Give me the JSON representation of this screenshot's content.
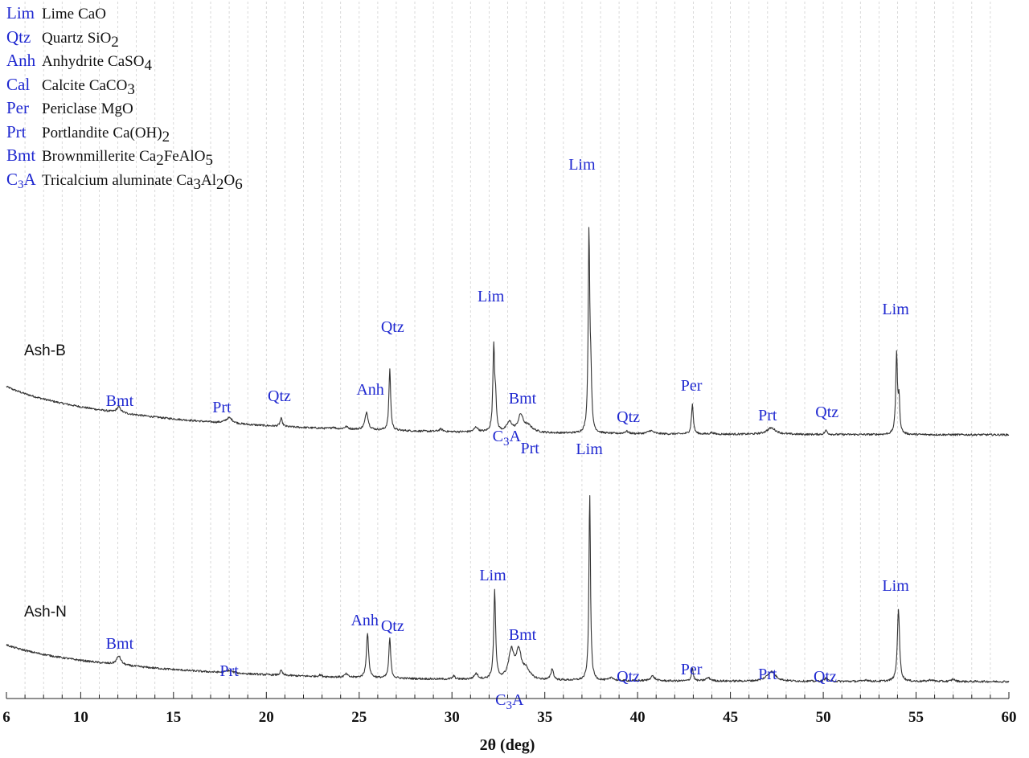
{
  "chart_data": {
    "type": "line",
    "xlabel": "2θ (deg)",
    "xlim": [
      6,
      60
    ],
    "x_ticks": [
      "6",
      "10",
      "15",
      "20",
      "25",
      "30",
      "35",
      "40",
      "45",
      "50",
      "55",
      "60"
    ],
    "grid": "vertical dashed, every 1 deg",
    "line_color": "#333333",
    "label_color": "#1f28d0",
    "legend_position": "top-left",
    "legend": [
      {
        "abbr": "Lim",
        "name": "Lime",
        "formula": [
          "Ca",
          "O"
        ],
        "sub": [
          "",
          ""
        ]
      },
      {
        "abbr": "Qtz",
        "name": "Quartz",
        "formula": [
          "Si",
          "O"
        ],
        "sub": [
          "",
          "2"
        ]
      },
      {
        "abbr": "Anh",
        "name": "Anhydrite",
        "formula": [
          "Ca",
          "S",
          "O"
        ],
        "sub": [
          "",
          "",
          "4"
        ]
      },
      {
        "abbr": "Cal",
        "name": "Calcite",
        "formula": [
          "Ca",
          "C",
          "O"
        ],
        "sub": [
          "",
          "",
          "3"
        ]
      },
      {
        "abbr": "Per",
        "name": "Periclase",
        "formula": [
          "Mg",
          "O"
        ],
        "sub": [
          "",
          ""
        ]
      },
      {
        "abbr": "Prt",
        "name": "Portlandite",
        "formula": [
          "Ca(OH)"
        ],
        "sub": [
          "2"
        ]
      },
      {
        "abbr": "Bmt",
        "name": "Brownmillerite",
        "formula": [
          "Ca",
          "FeAlO"
        ],
        "sub": [
          "2",
          "5"
        ]
      },
      {
        "abbr": "C3A",
        "name": "Tricalcium aluminate",
        "formula": [
          "Ca",
          "Al",
          "O"
        ],
        "sub": [
          "3",
          "2",
          "6"
        ]
      }
    ],
    "series": [
      {
        "name": "Ash-B",
        "baseline": {
          "start": 0.58,
          "end": 0.04,
          "decay": 2.3
        },
        "noise": 0.012,
        "peaks": [
          {
            "x": 12.05,
            "h": 0.07,
            "w": 0.14
          },
          {
            "x": 18.0,
            "h": 0.07,
            "w": 0.22
          },
          {
            "x": 20.8,
            "h": 0.1,
            "w": 0.07
          },
          {
            "x": 23.6,
            "h": 0.02,
            "w": 0.1
          },
          {
            "x": 24.3,
            "h": 0.03,
            "w": 0.12
          },
          {
            "x": 25.4,
            "h": 0.22,
            "w": 0.1
          },
          {
            "x": 26.65,
            "h": 0.77,
            "w": 0.055
          },
          {
            "x": 29.4,
            "h": 0.03,
            "w": 0.12
          },
          {
            "x": 31.3,
            "h": 0.06,
            "w": 0.12
          },
          {
            "x": 32.25,
            "h": 1.06,
            "w": 0.055
          },
          {
            "x": 32.35,
            "h": 0.35,
            "w": 0.05
          },
          {
            "x": 33.1,
            "h": 0.12,
            "w": 0.18
          },
          {
            "x": 33.7,
            "h": 0.2,
            "w": 0.16
          },
          {
            "x": 34.1,
            "h": 0.08,
            "w": 0.3
          },
          {
            "x": 37.38,
            "h": 2.48,
            "w": 0.05
          },
          {
            "x": 37.48,
            "h": 0.6,
            "w": 0.05
          },
          {
            "x": 39.4,
            "h": 0.03,
            "w": 0.12
          },
          {
            "x": 40.7,
            "h": 0.04,
            "w": 0.18
          },
          {
            "x": 42.95,
            "h": 0.37,
            "w": 0.06
          },
          {
            "x": 44.0,
            "h": 0.02,
            "w": 0.1
          },
          {
            "x": 47.2,
            "h": 0.08,
            "w": 0.3
          },
          {
            "x": 50.15,
            "h": 0.05,
            "w": 0.08
          },
          {
            "x": 53.95,
            "h": 1.0,
            "w": 0.055
          },
          {
            "x": 54.08,
            "h": 0.4,
            "w": 0.05
          }
        ],
        "peak_labels": [
          {
            "text": "Bmt",
            "x": 12.1,
            "y": 0.4
          },
          {
            "text": "Prt",
            "x": 17.6,
            "y": 0.32
          },
          {
            "text": "Qtz",
            "x": 20.7,
            "y": 0.46
          },
          {
            "text": "Anh",
            "x": 25.6,
            "y": 0.54
          },
          {
            "text": "Qtz",
            "x": 26.8,
            "y": 1.32
          },
          {
            "text": "Lim",
            "x": 32.1,
            "y": 1.7
          },
          {
            "text": "Bmt",
            "x": 33.8,
            "y": 0.43
          },
          {
            "text": "C3A",
            "x": 32.95,
            "y": -0.04
          },
          {
            "text": "Prt",
            "x": 34.2,
            "y": -0.19
          },
          {
            "text": "Lim",
            "x": 37.0,
            "y": 3.34
          },
          {
            "text": "Qtz",
            "x": 39.5,
            "y": 0.2
          },
          {
            "text": "Per",
            "x": 42.9,
            "y": 0.59
          },
          {
            "text": "Prt",
            "x": 47.0,
            "y": 0.22
          },
          {
            "text": "Qtz",
            "x": 50.2,
            "y": 0.26
          },
          {
            "text": "Lim",
            "x": 53.9,
            "y": 1.54
          }
        ]
      },
      {
        "name": "Ash-N",
        "baseline": {
          "start": 0.44,
          "end": 0.03,
          "decay": 2.3
        },
        "noise": 0.012,
        "peaks": [
          {
            "x": 12.05,
            "h": 0.11,
            "w": 0.14
          },
          {
            "x": 18.0,
            "h": 0.03,
            "w": 0.22
          },
          {
            "x": 20.8,
            "h": 0.06,
            "w": 0.07
          },
          {
            "x": 22.9,
            "h": 0.02,
            "w": 0.1
          },
          {
            "x": 24.3,
            "h": 0.04,
            "w": 0.1
          },
          {
            "x": 25.45,
            "h": 0.56,
            "w": 0.07
          },
          {
            "x": 26.65,
            "h": 0.5,
            "w": 0.06
          },
          {
            "x": 30.1,
            "h": 0.04,
            "w": 0.08
          },
          {
            "x": 31.3,
            "h": 0.07,
            "w": 0.12
          },
          {
            "x": 32.3,
            "h": 1.1,
            "w": 0.06
          },
          {
            "x": 33.2,
            "h": 0.35,
            "w": 0.18
          },
          {
            "x": 33.6,
            "h": 0.33,
            "w": 0.16
          },
          {
            "x": 34.0,
            "h": 0.12,
            "w": 0.22
          },
          {
            "x": 35.4,
            "h": 0.14,
            "w": 0.08
          },
          {
            "x": 37.42,
            "h": 2.32,
            "w": 0.05
          },
          {
            "x": 38.6,
            "h": 0.04,
            "w": 0.12
          },
          {
            "x": 40.8,
            "h": 0.06,
            "w": 0.14
          },
          {
            "x": 42.95,
            "h": 0.16,
            "w": 0.06
          },
          {
            "x": 43.8,
            "h": 0.04,
            "w": 0.15
          },
          {
            "x": 47.2,
            "h": 0.12,
            "w": 0.28
          },
          {
            "x": 50.15,
            "h": 0.04,
            "w": 0.1
          },
          {
            "x": 52.3,
            "h": 0.02,
            "w": 0.12
          },
          {
            "x": 54.05,
            "h": 0.9,
            "w": 0.07
          },
          {
            "x": 55.8,
            "h": 0.02,
            "w": 0.15
          },
          {
            "x": 57.0,
            "h": 0.03,
            "w": 0.1
          }
        ],
        "peak_labels": [
          {
            "text": "Bmt",
            "x": 12.1,
            "y": 0.44
          },
          {
            "text": "Prt",
            "x": 18.0,
            "y": 0.1
          },
          {
            "text": "Anh",
            "x": 25.3,
            "y": 0.73
          },
          {
            "text": "Qtz",
            "x": 26.8,
            "y": 0.66
          },
          {
            "text": "Lim",
            "x": 32.2,
            "y": 1.29
          },
          {
            "text": "Bmt",
            "x": 33.8,
            "y": 0.55
          },
          {
            "text": "C3A",
            "x": 33.1,
            "y": -0.26
          },
          {
            "text": "Lim",
            "x": 37.4,
            "y": 2.86
          },
          {
            "text": "Qtz",
            "x": 39.5,
            "y": 0.03
          },
          {
            "text": "Per",
            "x": 42.9,
            "y": 0.12
          },
          {
            "text": "Prt",
            "x": 47.0,
            "y": 0.06
          },
          {
            "text": "Qtz",
            "x": 50.1,
            "y": 0.03
          },
          {
            "text": "Lim",
            "x": 53.9,
            "y": 1.16
          }
        ]
      }
    ]
  }
}
